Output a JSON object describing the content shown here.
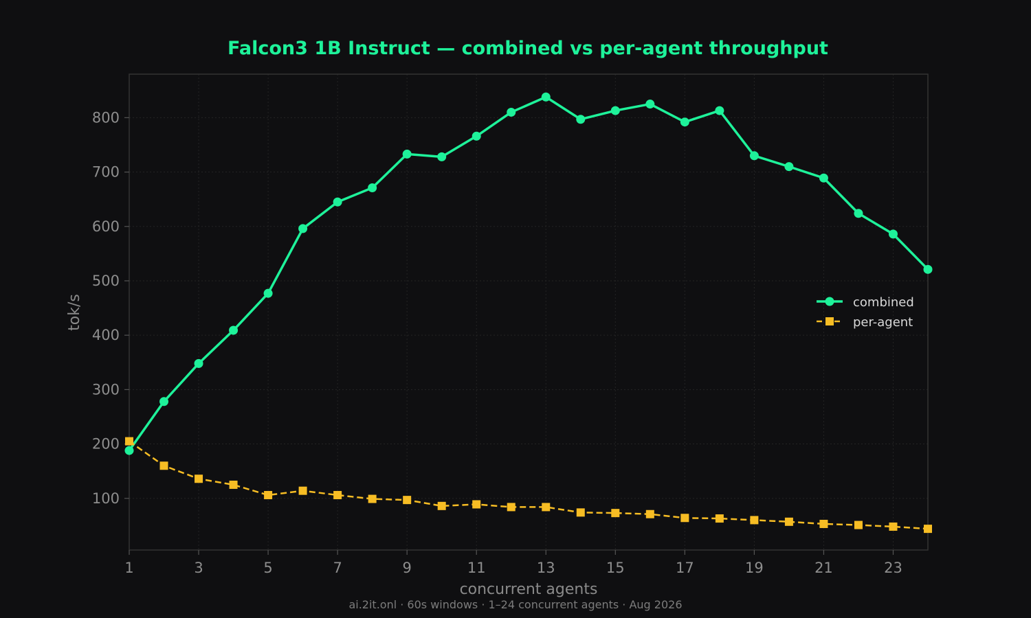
{
  "chart_data": {
    "type": "line",
    "title": "Falcon3 1B Instruct — combined vs per-agent throughput",
    "xlabel": "concurrent agents",
    "ylabel": "tok/s",
    "footer": "ai.2it.onl · 60s windows · 1–24 concurrent agents · Aug 2026",
    "x": [
      1,
      2,
      3,
      4,
      5,
      6,
      7,
      8,
      9,
      10,
      11,
      12,
      13,
      14,
      15,
      16,
      17,
      18,
      19,
      20,
      21,
      22,
      23,
      24
    ],
    "xlim": [
      1,
      24
    ],
    "ylim": [
      5,
      880
    ],
    "x_ticks": [
      1,
      3,
      5,
      7,
      9,
      11,
      13,
      15,
      17,
      19,
      21,
      23
    ],
    "y_ticks": [
      100,
      200,
      300,
      400,
      500,
      600,
      700,
      800
    ],
    "grid": true,
    "legend_position": "right",
    "series": [
      {
        "name": "combined",
        "color": "#1ef29a",
        "marker": "circle",
        "line_style": "solid",
        "values": [
          188,
          278,
          348,
          409,
          477,
          596,
          645,
          671,
          733,
          728,
          766,
          810,
          838,
          797,
          813,
          825,
          792,
          813,
          730,
          710,
          689,
          624,
          586,
          521
        ]
      },
      {
        "name": "per-agent",
        "color": "#f7bd24",
        "marker": "square",
        "line_style": "dashed",
        "values": [
          205,
          160,
          136,
          125,
          106,
          114,
          106,
          99,
          97,
          86,
          89,
          84,
          84,
          74,
          73,
          71,
          64,
          63,
          60,
          57,
          53,
          51,
          48,
          44
        ]
      }
    ],
    "colors": {
      "background": "#0f0f11",
      "plot_border": "#333333",
      "grid": "#242424"
    }
  }
}
